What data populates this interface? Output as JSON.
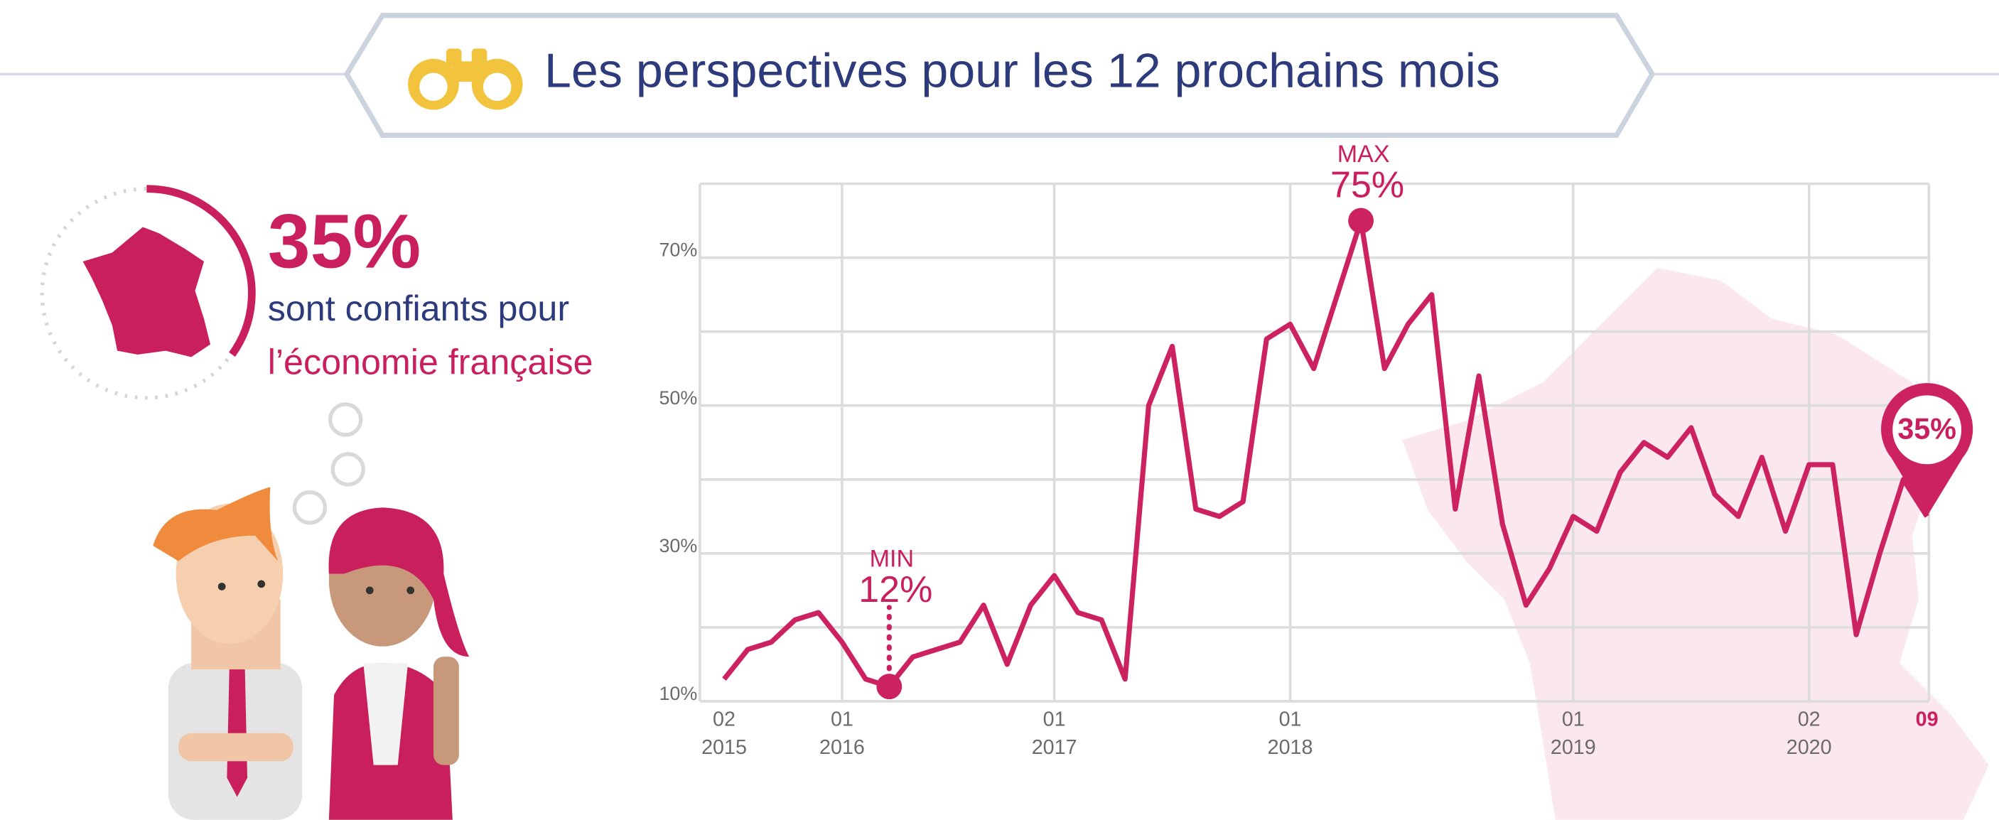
{
  "header": {
    "title": "Les perspectives pour les 12 prochains mois"
  },
  "highlight": {
    "value_label": "35%",
    "line1": "sont confiants pour",
    "line2": "l’économie française"
  },
  "chart_data": {
    "type": "line",
    "color": "#cc2360",
    "categories": [
      "02",
      null,
      null,
      null,
      null,
      "01",
      null,
      null,
      null,
      null,
      null,
      null,
      null,
      null,
      "01",
      null,
      null,
      null,
      null,
      null,
      null,
      null,
      null,
      null,
      "01",
      null,
      null,
      null,
      null,
      null,
      null,
      null,
      null,
      null,
      null,
      null,
      "01",
      null,
      null,
      null,
      null,
      null,
      null,
      null,
      null,
      null,
      "02",
      null,
      null,
      null,
      null,
      "09"
    ],
    "years": [
      "2015",
      null,
      null,
      null,
      null,
      "2016",
      null,
      null,
      null,
      null,
      null,
      null,
      null,
      null,
      "2017",
      null,
      null,
      null,
      null,
      null,
      null,
      null,
      null,
      null,
      "2018",
      null,
      null,
      null,
      null,
      null,
      null,
      null,
      null,
      null,
      null,
      null,
      "2019",
      null,
      null,
      null,
      null,
      null,
      null,
      null,
      null,
      null,
      "2020",
      null,
      null,
      null,
      null,
      null
    ],
    "values": [
      13,
      17,
      18,
      21,
      22,
      18,
      13,
      12,
      16,
      17,
      18,
      23,
      15,
      23,
      27,
      22,
      21,
      13,
      50,
      58,
      36,
      35,
      37,
      59,
      61,
      55,
      65,
      75,
      55,
      61,
      65,
      36,
      54,
      34,
      23,
      28,
      35,
      33,
      41,
      45,
      43,
      47,
      38,
      35,
      43,
      33,
      42,
      42,
      19,
      30,
      40,
      35
    ],
    "value_labels": [
      null,
      null,
      null,
      null,
      null,
      null,
      null,
      "12%",
      null,
      null,
      null,
      null,
      null,
      null,
      null,
      null,
      null,
      null,
      null,
      null,
      null,
      null,
      null,
      null,
      null,
      null,
      null,
      "75%",
      null,
      null,
      null,
      null,
      null,
      null,
      null,
      null,
      null,
      null,
      null,
      null,
      null,
      null,
      null,
      null,
      null,
      null,
      null,
      null,
      null,
      null,
      null,
      "35%"
    ],
    "point_tags": [
      null,
      null,
      null,
      null,
      null,
      null,
      null,
      "MIN",
      null,
      null,
      null,
      null,
      null,
      null,
      null,
      null,
      null,
      null,
      null,
      null,
      null,
      null,
      null,
      null,
      null,
      null,
      null,
      "MAX",
      null,
      null,
      null,
      null,
      null,
      null,
      null,
      null,
      null,
      null,
      null,
      null,
      null,
      null,
      null,
      null,
      null,
      null,
      null,
      null,
      null,
      null,
      null,
      null
    ],
    "ylim": [
      10,
      80
    ],
    "yticks": [
      {
        "value": 10,
        "label": "10%"
      },
      {
        "value": 30,
        "label": "30%"
      },
      {
        "value": 50,
        "label": "50%"
      },
      {
        "value": 70,
        "label": "70%"
      }
    ],
    "minor_gridlines": [
      20,
      40,
      60,
      80
    ],
    "grid": true
  }
}
